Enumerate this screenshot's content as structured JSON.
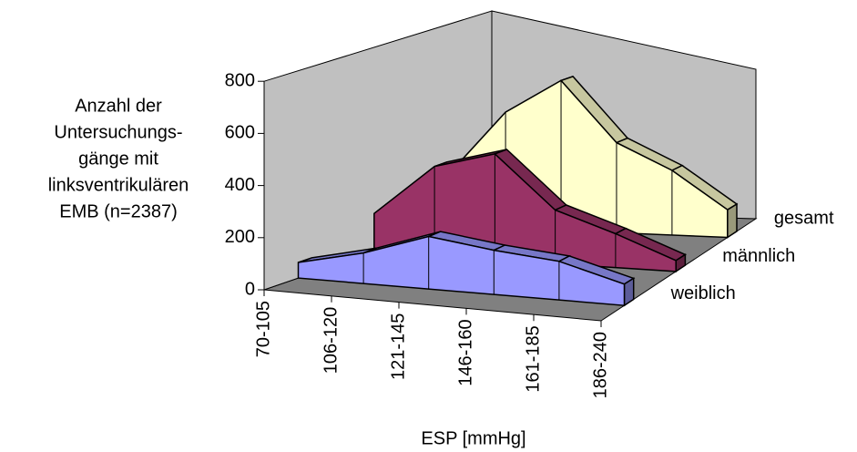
{
  "chart_data": {
    "type": "area3d",
    "ylabel": [
      "Anzahl der",
      "Untersuchungs-",
      "gänge mit",
      "linksventrikulären",
      "EMB (n=2387)"
    ],
    "xlabel": "ESP [mmHg]",
    "categories": [
      "70-105",
      "106-120",
      "121-145",
      "146-160",
      "161-185",
      "186-240"
    ],
    "series": [
      {
        "name": "weiblich",
        "color": "#9999ff",
        "values": [
          60,
          120,
          210,
          180,
          160,
          90
        ]
      },
      {
        "name": "männlich",
        "color": "#993366",
        "values": [
          150,
          360,
          440,
          230,
          150,
          50
        ]
      },
      {
        "name": "gesamt",
        "color": "#ffffcc",
        "values": [
          210,
          480,
          650,
          410,
          310,
          140
        ]
      }
    ],
    "ylim": [
      0,
      800
    ],
    "yticks": [
      0,
      200,
      400,
      600,
      800
    ],
    "grid": false
  }
}
